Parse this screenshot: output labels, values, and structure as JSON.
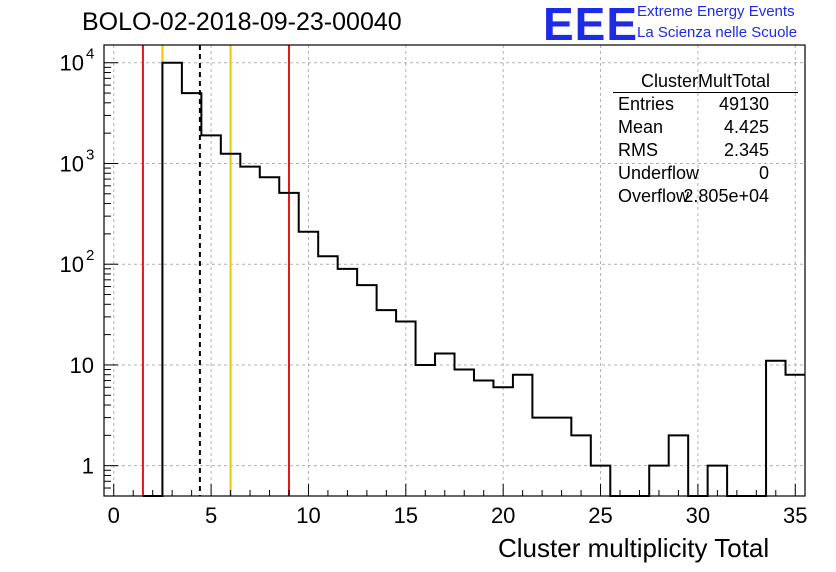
{
  "chart_data": {
    "type": "histogram",
    "title": "BOLO-02-2018-09-23-00040",
    "xlabel": "Cluster multiplicity Total",
    "ylabel": "",
    "x_range": [
      -0.5,
      35.5
    ],
    "y_range": [
      0.5,
      15000
    ],
    "y_scale": "log",
    "grid": true,
    "bin_width": 1,
    "bins": [
      {
        "x": 2,
        "value": 0
      },
      {
        "x": 3,
        "value": 10000
      },
      {
        "x": 4,
        "value": 5000
      },
      {
        "x": 5,
        "value": 1900
      },
      {
        "x": 6,
        "value": 1250
      },
      {
        "x": 7,
        "value": 930
      },
      {
        "x": 8,
        "value": 730
      },
      {
        "x": 9,
        "value": 510
      },
      {
        "x": 10,
        "value": 210
      },
      {
        "x": 11,
        "value": 120
      },
      {
        "x": 12,
        "value": 90
      },
      {
        "x": 13,
        "value": 62
      },
      {
        "x": 14,
        "value": 35
      },
      {
        "x": 15,
        "value": 27
      },
      {
        "x": 16,
        "value": 10
      },
      {
        "x": 17,
        "value": 13
      },
      {
        "x": 18,
        "value": 9
      },
      {
        "x": 19,
        "value": 7
      },
      {
        "x": 20,
        "value": 6
      },
      {
        "x": 21,
        "value": 8
      },
      {
        "x": 22,
        "value": 3
      },
      {
        "x": 23,
        "value": 3
      },
      {
        "x": 24,
        "value": 2
      },
      {
        "x": 25,
        "value": 1
      },
      {
        "x": 26,
        "value": 0
      },
      {
        "x": 27,
        "value": 0
      },
      {
        "x": 28,
        "value": 1
      },
      {
        "x": 29,
        "value": 2
      },
      {
        "x": 30,
        "value": 0
      },
      {
        "x": 31,
        "value": 1
      },
      {
        "x": 32,
        "value": 0
      },
      {
        "x": 33,
        "value": 0
      },
      {
        "x": 34,
        "value": 11
      },
      {
        "x": 35,
        "value": 8
      }
    ],
    "vertical_lines": [
      {
        "x": 1.5,
        "color": "#e8141c",
        "style": "solid"
      },
      {
        "x": 2.5,
        "color": "#f5c400",
        "style": "solid"
      },
      {
        "x": 4.425,
        "color": "#000000",
        "style": "dashed"
      },
      {
        "x": 6.0,
        "color": "#f5c400",
        "style": "solid"
      },
      {
        "x": 9.0,
        "color": "#e8141c",
        "style": "solid"
      }
    ],
    "x_ticks": [
      {
        "value": 0,
        "label": "0"
      },
      {
        "value": 5,
        "label": "5"
      },
      {
        "value": 10,
        "label": "10"
      },
      {
        "value": 15,
        "label": "15"
      },
      {
        "value": 20,
        "label": "20"
      },
      {
        "value": 25,
        "label": "25"
      },
      {
        "value": 30,
        "label": "30"
      },
      {
        "value": 35,
        "label": "35"
      }
    ],
    "y_ticks": [
      {
        "value": 1,
        "label": "1"
      },
      {
        "value": 10,
        "label": "10"
      },
      {
        "value": 100,
        "label": "10",
        "exp": "2"
      },
      {
        "value": 1000,
        "label": "10",
        "exp": "3"
      },
      {
        "value": 10000,
        "label": "10",
        "exp": "4"
      }
    ],
    "stats_box": {
      "name": "ClusterMultTotal",
      "rows": [
        {
          "key": "Entries",
          "value": "49130"
        },
        {
          "key": "Mean",
          "value": "4.425"
        },
        {
          "key": "RMS",
          "value": "2.345"
        },
        {
          "key": "Underflow",
          "value": "0"
        },
        {
          "key": "Overflow",
          "value": "2.805e+04"
        }
      ]
    }
  },
  "branding": {
    "logo_text": "EEE",
    "org_line1": "Extreme Energy Events",
    "org_line2": "La Scienza nelle Scuole",
    "logo_color": "#1c2be6"
  }
}
